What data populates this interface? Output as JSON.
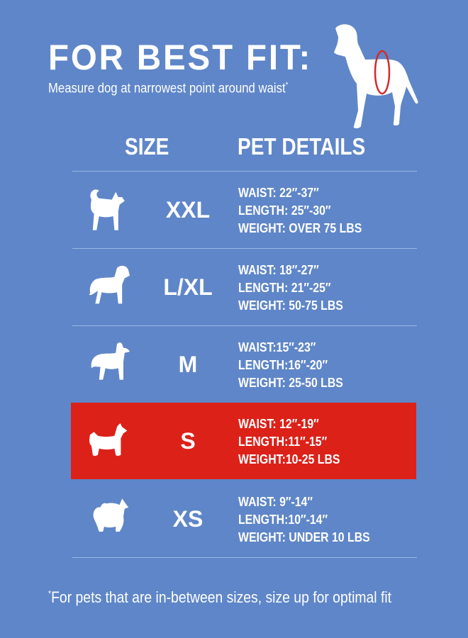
{
  "header": {
    "title": "FOR BEST FIT:",
    "subtitle": "Measure dog at narrowest point around waist",
    "subtitle_mark": "*"
  },
  "columns": {
    "size": "SIZE",
    "details": "PET DETAILS"
  },
  "colors": {
    "background": "#5f86c8",
    "highlight": "#dc2119",
    "waist_marker": "#d42a2a"
  },
  "rows": [
    {
      "size": "XXL",
      "icon": "husky-icon",
      "waist": "WAIST: 22″-37″",
      "length": "LENGTH: 25″-30″",
      "weight": "WEIGHT: OVER 75 LBS",
      "highlighted": false
    },
    {
      "size": "L/XL",
      "icon": "retriever-icon",
      "waist": "WAIST: 18″-27″",
      "length": "LENGTH: 21″-25″",
      "weight": "WEIGHT: 50-75 LBS",
      "highlighted": false
    },
    {
      "size": "M",
      "icon": "collie-icon",
      "waist": "WAIST:15″-23″",
      "length": "LENGTH:16″-20″",
      "weight": "WEIGHT: 25-50 LBS",
      "highlighted": false
    },
    {
      "size": "S",
      "icon": "terrier-icon",
      "waist": "WAIST: 12″-19″",
      "length": "LENGTH:11″-15″",
      "weight": "WEIGHT:10-25 LBS",
      "highlighted": true
    },
    {
      "size": "XS",
      "icon": "pomeranian-icon",
      "waist": "WAIST: 9″-14″",
      "length": "LENGTH:10″-14″",
      "weight": "WEIGHT: UNDER 10 LBS",
      "highlighted": false
    }
  ],
  "footnote": {
    "mark": "*",
    "text": "For pets that are in-between sizes, size up for optimal fit"
  }
}
